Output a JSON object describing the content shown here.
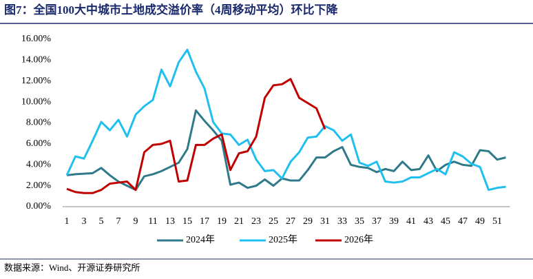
{
  "chart_data": {
    "type": "line",
    "title": "图7：全国100大中城市土地成交溢价率（4周移动平均）环比下降",
    "source": "数据来源：Wind、开源证券研究所",
    "categories": [
      1,
      null,
      3,
      null,
      5,
      null,
      7,
      null,
      9,
      null,
      11,
      null,
      13,
      null,
      15,
      null,
      17,
      null,
      19,
      null,
      21,
      null,
      23,
      null,
      25,
      null,
      27,
      null,
      29,
      null,
      31,
      null,
      33,
      null,
      35,
      null,
      37,
      null,
      39,
      null,
      41,
      null,
      43,
      null,
      45,
      null,
      47,
      null,
      49,
      null,
      51,
      null
    ],
    "series": [
      {
        "name": "2024年",
        "color": "#2f7a8a",
        "values": [
          3.0,
          3.1,
          3.15,
          3.2,
          3.7,
          3.0,
          2.4,
          2.0,
          1.6,
          2.9,
          3.1,
          3.4,
          3.8,
          4.2,
          5.5,
          9.2,
          8.2,
          7.3,
          6.3,
          2.1,
          2.3,
          1.8,
          2.0,
          2.6,
          2.0,
          2.7,
          2.5,
          2.5,
          3.5,
          4.7,
          4.7,
          5.3,
          5.7,
          4.0,
          3.8,
          3.7,
          3.3,
          3.6,
          3.4,
          4.3,
          3.5,
          3.6,
          4.9,
          3.4,
          4.0,
          4.3,
          4.0,
          3.9,
          5.4,
          5.3,
          4.5,
          4.7
        ]
      },
      {
        "name": "2025年",
        "color": "#1fbff0",
        "values": [
          3.0,
          4.8,
          4.6,
          6.3,
          8.1,
          7.3,
          8.3,
          6.7,
          8.8,
          9.6,
          10.2,
          13.1,
          11.5,
          13.8,
          15.0,
          12.9,
          11.3,
          8.1,
          7.0,
          6.9,
          5.9,
          6.4,
          4.5,
          3.4,
          3.5,
          2.7,
          4.3,
          5.2,
          6.6,
          6.7,
          7.7,
          7.3,
          6.3,
          6.9,
          4.2,
          3.9,
          4.3,
          2.4,
          2.3,
          2.4,
          2.8,
          2.8,
          3.2,
          3.6,
          3.1,
          5.2,
          4.8,
          4.1,
          3.8,
          1.6,
          1.8,
          1.9
        ]
      },
      {
        "name": "2026年",
        "color": "#c00000",
        "values": [
          1.7,
          1.4,
          1.3,
          1.3,
          1.6,
          2.2,
          2.3,
          2.4,
          1.6,
          5.2,
          5.9,
          6.0,
          6.3,
          2.4,
          2.5,
          5.9,
          5.9,
          6.5,
          6.9,
          3.5,
          5.1,
          5.3,
          6.7,
          10.4,
          11.6,
          11.7,
          12.2,
          10.4,
          9.9,
          9.4,
          7.4,
          null,
          null,
          null,
          null,
          null,
          null,
          null,
          null,
          null,
          null,
          null,
          null,
          null,
          null,
          null,
          null,
          null,
          null,
          null,
          null,
          null
        ]
      }
    ],
    "ylim": [
      0,
      16
    ],
    "yticks": [
      {
        "value": 0,
        "label": "0.00%"
      },
      {
        "value": 2,
        "label": "2.00%"
      },
      {
        "value": 4,
        "label": "4.00%"
      },
      {
        "value": 6,
        "label": "6.00%"
      },
      {
        "value": 8,
        "label": "8.00%"
      },
      {
        "value": 10,
        "label": "10.00%"
      },
      {
        "value": 12,
        "label": "12.00%"
      },
      {
        "value": 14,
        "label": "14.00%"
      },
      {
        "value": 16,
        "label": "16.00%"
      }
    ],
    "grid": false,
    "legend": "bottom"
  }
}
